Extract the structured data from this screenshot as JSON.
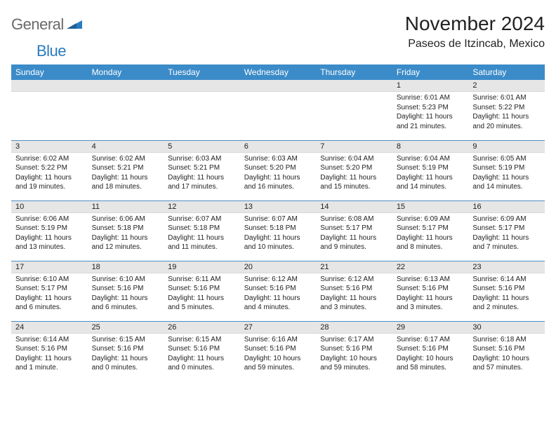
{
  "brand": {
    "general": "General",
    "blue": "Blue"
  },
  "header": {
    "month_title": "November 2024",
    "location": "Paseos de Itzincab, Mexico"
  },
  "colors": {
    "header_bg": "#3b8bc8",
    "daynum_bg": "#e6e6e6",
    "week_border": "#4d8fc4",
    "logo_gray": "#6a6a6a",
    "logo_blue": "#2a7bbf"
  },
  "weekdays": [
    "Sunday",
    "Monday",
    "Tuesday",
    "Wednesday",
    "Thursday",
    "Friday",
    "Saturday"
  ],
  "weeks": [
    [
      {
        "empty": true
      },
      {
        "empty": true
      },
      {
        "empty": true
      },
      {
        "empty": true
      },
      {
        "empty": true
      },
      {
        "day": "1",
        "sunrise": "Sunrise: 6:01 AM",
        "sunset": "Sunset: 5:23 PM",
        "daylight1": "Daylight: 11 hours",
        "daylight2": "and 21 minutes."
      },
      {
        "day": "2",
        "sunrise": "Sunrise: 6:01 AM",
        "sunset": "Sunset: 5:22 PM",
        "daylight1": "Daylight: 11 hours",
        "daylight2": "and 20 minutes."
      }
    ],
    [
      {
        "day": "3",
        "sunrise": "Sunrise: 6:02 AM",
        "sunset": "Sunset: 5:22 PM",
        "daylight1": "Daylight: 11 hours",
        "daylight2": "and 19 minutes."
      },
      {
        "day": "4",
        "sunrise": "Sunrise: 6:02 AM",
        "sunset": "Sunset: 5:21 PM",
        "daylight1": "Daylight: 11 hours",
        "daylight2": "and 18 minutes."
      },
      {
        "day": "5",
        "sunrise": "Sunrise: 6:03 AM",
        "sunset": "Sunset: 5:21 PM",
        "daylight1": "Daylight: 11 hours",
        "daylight2": "and 17 minutes."
      },
      {
        "day": "6",
        "sunrise": "Sunrise: 6:03 AM",
        "sunset": "Sunset: 5:20 PM",
        "daylight1": "Daylight: 11 hours",
        "daylight2": "and 16 minutes."
      },
      {
        "day": "7",
        "sunrise": "Sunrise: 6:04 AM",
        "sunset": "Sunset: 5:20 PM",
        "daylight1": "Daylight: 11 hours",
        "daylight2": "and 15 minutes."
      },
      {
        "day": "8",
        "sunrise": "Sunrise: 6:04 AM",
        "sunset": "Sunset: 5:19 PM",
        "daylight1": "Daylight: 11 hours",
        "daylight2": "and 14 minutes."
      },
      {
        "day": "9",
        "sunrise": "Sunrise: 6:05 AM",
        "sunset": "Sunset: 5:19 PM",
        "daylight1": "Daylight: 11 hours",
        "daylight2": "and 14 minutes."
      }
    ],
    [
      {
        "day": "10",
        "sunrise": "Sunrise: 6:06 AM",
        "sunset": "Sunset: 5:19 PM",
        "daylight1": "Daylight: 11 hours",
        "daylight2": "and 13 minutes."
      },
      {
        "day": "11",
        "sunrise": "Sunrise: 6:06 AM",
        "sunset": "Sunset: 5:18 PM",
        "daylight1": "Daylight: 11 hours",
        "daylight2": "and 12 minutes."
      },
      {
        "day": "12",
        "sunrise": "Sunrise: 6:07 AM",
        "sunset": "Sunset: 5:18 PM",
        "daylight1": "Daylight: 11 hours",
        "daylight2": "and 11 minutes."
      },
      {
        "day": "13",
        "sunrise": "Sunrise: 6:07 AM",
        "sunset": "Sunset: 5:18 PM",
        "daylight1": "Daylight: 11 hours",
        "daylight2": "and 10 minutes."
      },
      {
        "day": "14",
        "sunrise": "Sunrise: 6:08 AM",
        "sunset": "Sunset: 5:17 PM",
        "daylight1": "Daylight: 11 hours",
        "daylight2": "and 9 minutes."
      },
      {
        "day": "15",
        "sunrise": "Sunrise: 6:09 AM",
        "sunset": "Sunset: 5:17 PM",
        "daylight1": "Daylight: 11 hours",
        "daylight2": "and 8 minutes."
      },
      {
        "day": "16",
        "sunrise": "Sunrise: 6:09 AM",
        "sunset": "Sunset: 5:17 PM",
        "daylight1": "Daylight: 11 hours",
        "daylight2": "and 7 minutes."
      }
    ],
    [
      {
        "day": "17",
        "sunrise": "Sunrise: 6:10 AM",
        "sunset": "Sunset: 5:17 PM",
        "daylight1": "Daylight: 11 hours",
        "daylight2": "and 6 minutes."
      },
      {
        "day": "18",
        "sunrise": "Sunrise: 6:10 AM",
        "sunset": "Sunset: 5:16 PM",
        "daylight1": "Daylight: 11 hours",
        "daylight2": "and 6 minutes."
      },
      {
        "day": "19",
        "sunrise": "Sunrise: 6:11 AM",
        "sunset": "Sunset: 5:16 PM",
        "daylight1": "Daylight: 11 hours",
        "daylight2": "and 5 minutes."
      },
      {
        "day": "20",
        "sunrise": "Sunrise: 6:12 AM",
        "sunset": "Sunset: 5:16 PM",
        "daylight1": "Daylight: 11 hours",
        "daylight2": "and 4 minutes."
      },
      {
        "day": "21",
        "sunrise": "Sunrise: 6:12 AM",
        "sunset": "Sunset: 5:16 PM",
        "daylight1": "Daylight: 11 hours",
        "daylight2": "and 3 minutes."
      },
      {
        "day": "22",
        "sunrise": "Sunrise: 6:13 AM",
        "sunset": "Sunset: 5:16 PM",
        "daylight1": "Daylight: 11 hours",
        "daylight2": "and 3 minutes."
      },
      {
        "day": "23",
        "sunrise": "Sunrise: 6:14 AM",
        "sunset": "Sunset: 5:16 PM",
        "daylight1": "Daylight: 11 hours",
        "daylight2": "and 2 minutes."
      }
    ],
    [
      {
        "day": "24",
        "sunrise": "Sunrise: 6:14 AM",
        "sunset": "Sunset: 5:16 PM",
        "daylight1": "Daylight: 11 hours",
        "daylight2": "and 1 minute."
      },
      {
        "day": "25",
        "sunrise": "Sunrise: 6:15 AM",
        "sunset": "Sunset: 5:16 PM",
        "daylight1": "Daylight: 11 hours",
        "daylight2": "and 0 minutes."
      },
      {
        "day": "26",
        "sunrise": "Sunrise: 6:15 AM",
        "sunset": "Sunset: 5:16 PM",
        "daylight1": "Daylight: 11 hours",
        "daylight2": "and 0 minutes."
      },
      {
        "day": "27",
        "sunrise": "Sunrise: 6:16 AM",
        "sunset": "Sunset: 5:16 PM",
        "daylight1": "Daylight: 10 hours",
        "daylight2": "and 59 minutes."
      },
      {
        "day": "28",
        "sunrise": "Sunrise: 6:17 AM",
        "sunset": "Sunset: 5:16 PM",
        "daylight1": "Daylight: 10 hours",
        "daylight2": "and 59 minutes."
      },
      {
        "day": "29",
        "sunrise": "Sunrise: 6:17 AM",
        "sunset": "Sunset: 5:16 PM",
        "daylight1": "Daylight: 10 hours",
        "daylight2": "and 58 minutes."
      },
      {
        "day": "30",
        "sunrise": "Sunrise: 6:18 AM",
        "sunset": "Sunset: 5:16 PM",
        "daylight1": "Daylight: 10 hours",
        "daylight2": "and 57 minutes."
      }
    ]
  ]
}
